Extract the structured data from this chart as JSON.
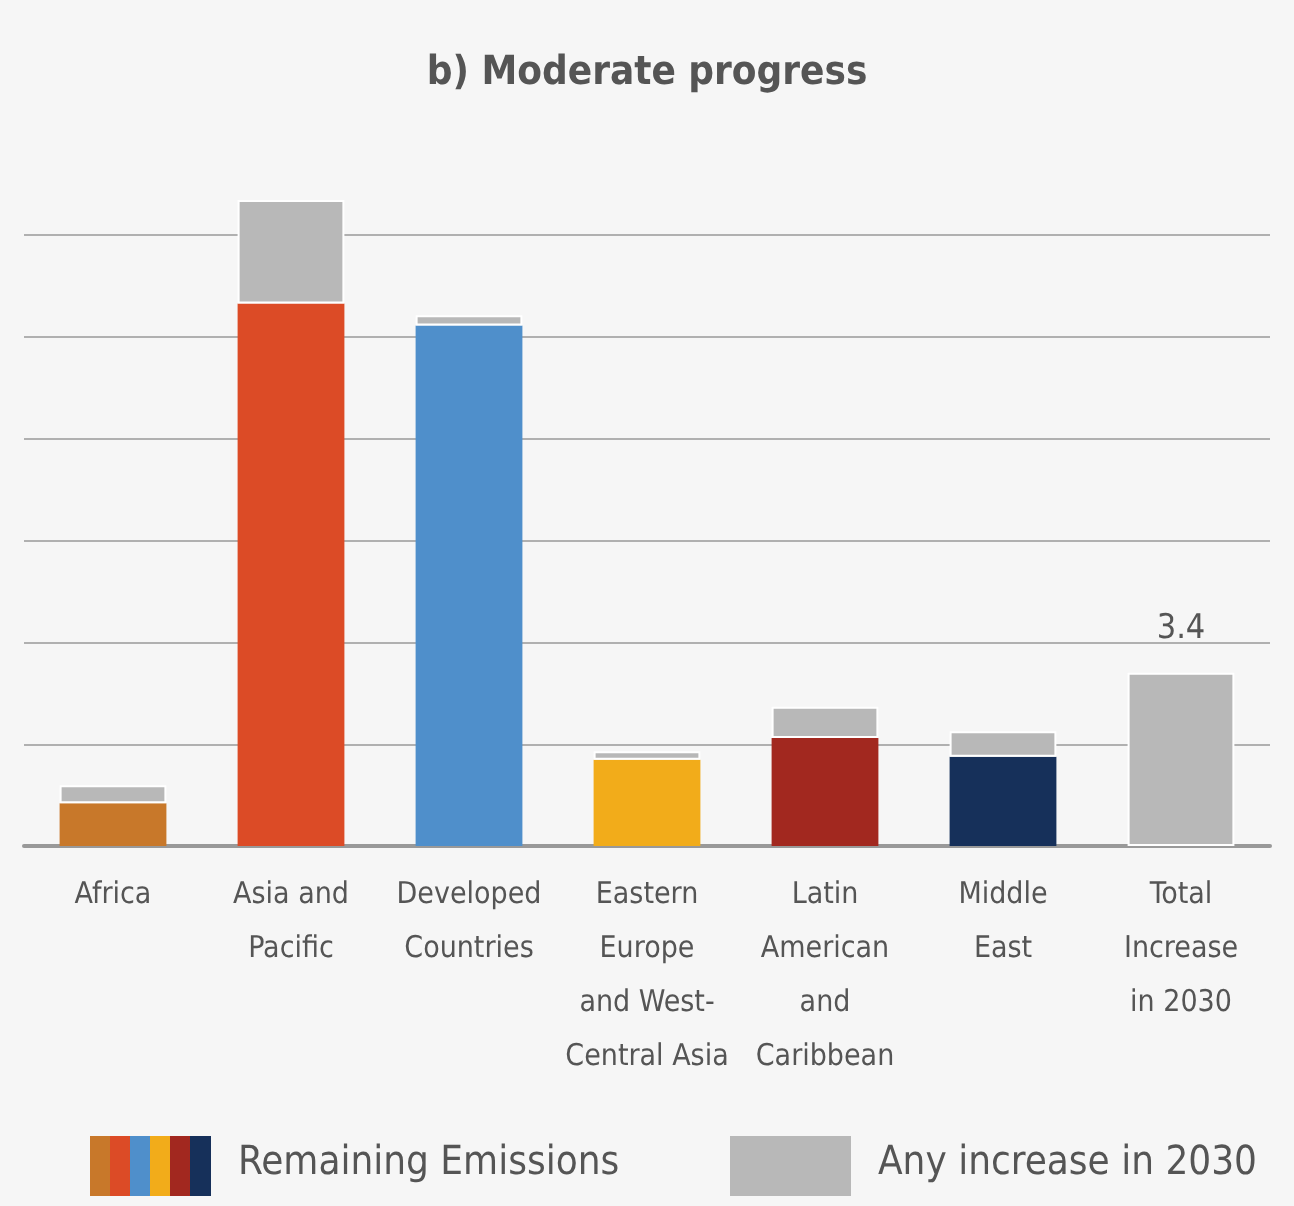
{
  "chart_data": {
    "type": "bar",
    "title": "b) Moderate progress",
    "stacked": true,
    "categories": [
      "Africa",
      "Asia and\nPacific",
      "Developed\nCountries",
      "Eastern\nEurope\nand West-\nCentral Asia",
      "Latin\nAmerican\nand\nCaribbean",
      "Middle\nEast",
      "Total\nIncrease\nin 2030"
    ],
    "series": [
      {
        "name": "Remaining Emissions",
        "colors": [
          "#c8782a",
          "#dc4b26",
          "#4f8fcb",
          "#f2ac1a",
          "#a2281f",
          "#16305a",
          "#b8b8b8"
        ],
        "values": [
          0.84,
          10.64,
          10.21,
          1.69,
          2.12,
          1.75,
          0
        ]
      },
      {
        "name": "Any increase in 2030",
        "color": "#b8b8b8",
        "values": [
          0.35,
          2.03,
          0.2,
          0.17,
          0.61,
          0.5,
          3.4
        ],
        "value_labels": [
          null,
          null,
          null,
          null,
          null,
          null,
          "3.4"
        ]
      }
    ],
    "yticks": [
      {
        "value": 0,
        "label": null
      },
      {
        "value": 2,
        "label": null
      },
      {
        "value": 4,
        "label": null
      },
      {
        "value": 6,
        "label": null
      },
      {
        "value": 8,
        "label": null
      },
      {
        "value": 10,
        "label": null
      },
      {
        "value": 12,
        "label": null
      }
    ],
    "grid": "y",
    "legend": "bottom"
  }
}
